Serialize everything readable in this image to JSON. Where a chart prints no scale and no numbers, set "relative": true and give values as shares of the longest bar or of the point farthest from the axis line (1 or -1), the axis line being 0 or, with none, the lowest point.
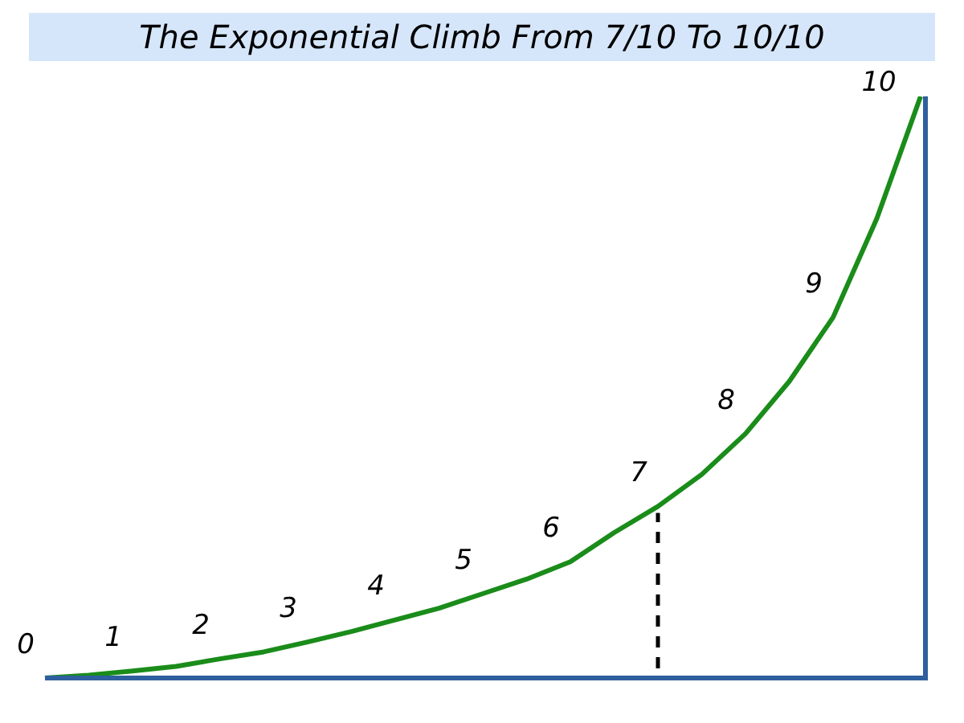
{
  "chart_data": {
    "type": "line",
    "title": "The Exponential Climb From 7/10 To 10/10",
    "relative": true,
    "categories": [
      null,
      null,
      null,
      null,
      null,
      null,
      null,
      null,
      null,
      null,
      null,
      null,
      null,
      null,
      null,
      null,
      null,
      null,
      null,
      null,
      null
    ],
    "series": [
      {
        "color": "#1a8c1a",
        "values": [
          0,
          0.005,
          0.012,
          0.02,
          0.033,
          0.045,
          0.062,
          0.08,
          0.1,
          0.12,
          0.145,
          0.17,
          0.2,
          0.25,
          0.295,
          0.35,
          0.42,
          0.51,
          0.62,
          0.79,
          1.0
        ]
      }
    ],
    "annotations": [
      "0",
      "1",
      "2",
      "3",
      "4",
      "5",
      "6",
      "7",
      "8",
      "9",
      "10"
    ],
    "marker": "none",
    "legend": false
  }
}
